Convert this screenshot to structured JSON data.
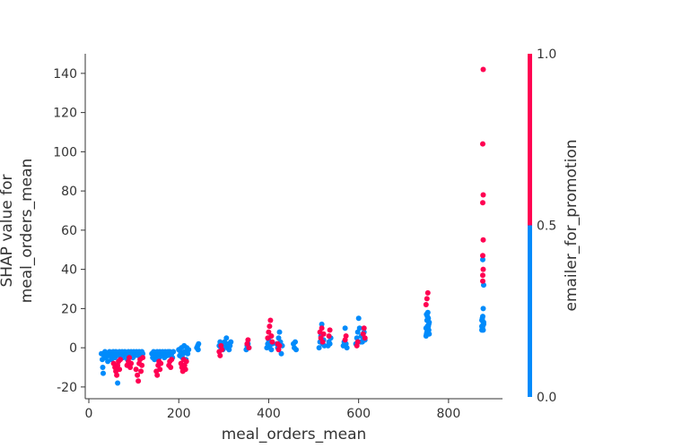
{
  "chart_data": {
    "type": "scatter",
    "title": "",
    "xlabel": "meal_orders_mean",
    "ylabel": "SHAP value for\nmeal_orders_mean",
    "xlim": [
      -8,
      920
    ],
    "ylim": [
      -26,
      150
    ],
    "xticks": [
      0,
      200,
      400,
      600,
      800
    ],
    "yticks": [
      -20,
      0,
      20,
      40,
      60,
      80,
      100,
      120,
      140
    ],
    "grid": false,
    "colorbar": {
      "label": "emailer_for_promotion",
      "ticks": [
        "0.0",
        "0.5",
        "1.0"
      ],
      "low_color": "#008bfb",
      "high_color": "#ff0052"
    },
    "colors": {
      "blue": "#008bfb",
      "red": "#ff0052"
    },
    "series": [
      {
        "color_value": 0,
        "points": [
          [
            28,
            -3
          ],
          [
            30,
            -6
          ],
          [
            31,
            -10
          ],
          [
            32,
            -13
          ],
          [
            34,
            -4
          ],
          [
            36,
            -2
          ],
          [
            38,
            -5
          ],
          [
            40,
            -3
          ],
          [
            42,
            -7
          ],
          [
            44,
            -4
          ],
          [
            46,
            -2
          ],
          [
            48,
            -3
          ],
          [
            50,
            -6
          ],
          [
            52,
            -4
          ],
          [
            54,
            -2
          ],
          [
            56,
            -3
          ],
          [
            58,
            -5
          ],
          [
            60,
            -2
          ],
          [
            62,
            -4
          ],
          [
            64,
            -18
          ],
          [
            66,
            -3
          ],
          [
            68,
            -2
          ],
          [
            70,
            -4
          ],
          [
            72,
            -3
          ],
          [
            74,
            -2
          ],
          [
            76,
            -5
          ],
          [
            78,
            -3
          ],
          [
            80,
            -2
          ],
          [
            82,
            -4
          ],
          [
            84,
            -3
          ],
          [
            86,
            -6
          ],
          [
            88,
            -2
          ],
          [
            90,
            -3
          ],
          [
            92,
            -4
          ],
          [
            94,
            -2
          ],
          [
            96,
            -3
          ],
          [
            98,
            -5
          ],
          [
            100,
            -2
          ],
          [
            102,
            -4
          ],
          [
            104,
            -3
          ],
          [
            106,
            -2
          ],
          [
            108,
            -3
          ],
          [
            110,
            -4
          ],
          [
            112,
            -2
          ],
          [
            114,
            -3
          ],
          [
            116,
            -5
          ],
          [
            118,
            -2
          ],
          [
            120,
            -3
          ],
          [
            140,
            -3
          ],
          [
            142,
            -5
          ],
          [
            144,
            -2
          ],
          [
            146,
            -6
          ],
          [
            148,
            -3
          ],
          [
            150,
            -4
          ],
          [
            152,
            -2
          ],
          [
            154,
            -3
          ],
          [
            156,
            -5
          ],
          [
            158,
            -2
          ],
          [
            160,
            -3
          ],
          [
            162,
            -4
          ],
          [
            164,
            -2
          ],
          [
            166,
            -3
          ],
          [
            168,
            -5
          ],
          [
            170,
            -2
          ],
          [
            172,
            -3
          ],
          [
            174,
            -4
          ],
          [
            176,
            -2
          ],
          [
            178,
            -3
          ],
          [
            180,
            -2
          ],
          [
            182,
            -4
          ],
          [
            184,
            -3
          ],
          [
            186,
            -5
          ],
          [
            188,
            -2
          ],
          [
            200,
            -1
          ],
          [
            202,
            -4
          ],
          [
            204,
            -2
          ],
          [
            206,
            0
          ],
          [
            208,
            -5
          ],
          [
            210,
            -3
          ],
          [
            212,
            1
          ],
          [
            214,
            -2
          ],
          [
            216,
            -6
          ],
          [
            218,
            0
          ],
          [
            220,
            -3
          ],
          [
            222,
            -1
          ],
          [
            240,
            0
          ],
          [
            242,
            1
          ],
          [
            244,
            2
          ],
          [
            243,
            -1
          ],
          [
            290,
            1
          ],
          [
            292,
            3
          ],
          [
            294,
            0
          ],
          [
            296,
            2
          ],
          [
            298,
            -1
          ],
          [
            300,
            1
          ],
          [
            302,
            3
          ],
          [
            304,
            2
          ],
          [
            306,
            5
          ],
          [
            308,
            0
          ],
          [
            310,
            2
          ],
          [
            312,
            -1
          ],
          [
            314,
            1
          ],
          [
            316,
            3
          ],
          [
            350,
            -1
          ],
          [
            352,
            1
          ],
          [
            354,
            2
          ],
          [
            356,
            0
          ],
          [
            396,
            0
          ],
          [
            398,
            2
          ],
          [
            400,
            4
          ],
          [
            402,
            1
          ],
          [
            404,
            3
          ],
          [
            406,
            -1
          ],
          [
            408,
            2
          ],
          [
            418,
            2
          ],
          [
            420,
            0
          ],
          [
            422,
            5
          ],
          [
            424,
            8
          ],
          [
            426,
            3
          ],
          [
            428,
            -3
          ],
          [
            430,
            1
          ],
          [
            455,
            2
          ],
          [
            457,
            0
          ],
          [
            459,
            3
          ],
          [
            461,
            -1
          ],
          [
            512,
            0
          ],
          [
            514,
            3
          ],
          [
            516,
            6
          ],
          [
            518,
            12
          ],
          [
            520,
            2
          ],
          [
            522,
            4
          ],
          [
            524,
            1
          ],
          [
            532,
            1
          ],
          [
            534,
            3
          ],
          [
            536,
            2
          ],
          [
            538,
            5
          ],
          [
            566,
            1
          ],
          [
            568,
            3
          ],
          [
            570,
            10
          ],
          [
            572,
            2
          ],
          [
            574,
            0
          ],
          [
            594,
            2
          ],
          [
            596,
            5
          ],
          [
            598,
            8
          ],
          [
            600,
            15
          ],
          [
            602,
            10
          ],
          [
            604,
            3
          ],
          [
            606,
            6
          ],
          [
            608,
            3
          ],
          [
            610,
            5
          ],
          [
            612,
            8
          ],
          [
            614,
            4
          ],
          [
            750,
            6
          ],
          [
            751,
            7
          ],
          [
            752,
            8
          ],
          [
            753,
            9
          ],
          [
            754,
            10
          ],
          [
            755,
            11
          ],
          [
            756,
            12
          ],
          [
            757,
            13
          ],
          [
            752,
            14
          ],
          [
            753,
            16
          ],
          [
            754,
            18
          ],
          [
            755,
            15
          ],
          [
            751,
            17
          ],
          [
            750,
            10
          ],
          [
            756,
            9
          ],
          [
            757,
            7
          ],
          [
            753,
            11
          ],
          [
            754,
            8
          ],
          [
            874,
            9
          ],
          [
            875,
            10
          ],
          [
            876,
            11
          ],
          [
            877,
            12
          ],
          [
            878,
            13
          ],
          [
            874,
            14
          ],
          [
            875,
            15
          ],
          [
            876,
            16
          ],
          [
            877,
            20
          ],
          [
            878,
            32
          ],
          [
            876,
            45
          ],
          [
            875,
            14
          ],
          [
            874,
            11
          ],
          [
            877,
            9
          ],
          [
            878,
            12
          ]
        ]
      },
      {
        "color_value": 1,
        "points": [
          [
            55,
            -8
          ],
          [
            58,
            -10
          ],
          [
            60,
            -12
          ],
          [
            62,
            -14
          ],
          [
            64,
            -9
          ],
          [
            66,
            -7
          ],
          [
            68,
            -11
          ],
          [
            70,
            -6
          ],
          [
            85,
            -9
          ],
          [
            88,
            -7
          ],
          [
            90,
            -5
          ],
          [
            92,
            -10
          ],
          [
            94,
            -8
          ],
          [
            105,
            -11
          ],
          [
            108,
            -14
          ],
          [
            110,
            -17
          ],
          [
            112,
            -8
          ],
          [
            114,
            -6
          ],
          [
            116,
            -12
          ],
          [
            118,
            -9
          ],
          [
            120,
            -5
          ],
          [
            150,
            -12
          ],
          [
            152,
            -14
          ],
          [
            154,
            -9
          ],
          [
            156,
            -7
          ],
          [
            158,
            -11
          ],
          [
            160,
            -8
          ],
          [
            178,
            -9
          ],
          [
            180,
            -7
          ],
          [
            182,
            -10
          ],
          [
            184,
            -6
          ],
          [
            205,
            -8
          ],
          [
            207,
            -10
          ],
          [
            209,
            -12
          ],
          [
            211,
            -6
          ],
          [
            213,
            -9
          ],
          [
            215,
            -11
          ],
          [
            217,
            -7
          ],
          [
            290,
            -2
          ],
          [
            292,
            -4
          ],
          [
            294,
            1
          ],
          [
            296,
            -1
          ],
          [
            352,
            2
          ],
          [
            354,
            4
          ],
          [
            356,
            0
          ],
          [
            398,
            5
          ],
          [
            400,
            8
          ],
          [
            402,
            11
          ],
          [
            404,
            14
          ],
          [
            406,
            6
          ],
          [
            408,
            3
          ],
          [
            420,
            2
          ],
          [
            422,
            -1
          ],
          [
            424,
            1
          ],
          [
            514,
            8
          ],
          [
            516,
            5
          ],
          [
            518,
            10
          ],
          [
            520,
            3
          ],
          [
            522,
            7
          ],
          [
            534,
            6
          ],
          [
            536,
            9
          ],
          [
            570,
            4
          ],
          [
            572,
            6
          ],
          [
            596,
            1
          ],
          [
            598,
            3
          ],
          [
            610,
            7
          ],
          [
            612,
            10
          ],
          [
            614,
            5
          ],
          [
            750,
            22
          ],
          [
            752,
            25
          ],
          [
            754,
            28
          ],
          [
            876,
            34
          ],
          [
            876,
            37
          ],
          [
            877,
            40
          ],
          [
            876,
            47
          ],
          [
            877,
            55
          ],
          [
            876,
            74
          ],
          [
            877,
            78
          ],
          [
            876,
            104
          ],
          [
            877,
            142
          ]
        ]
      }
    ]
  }
}
